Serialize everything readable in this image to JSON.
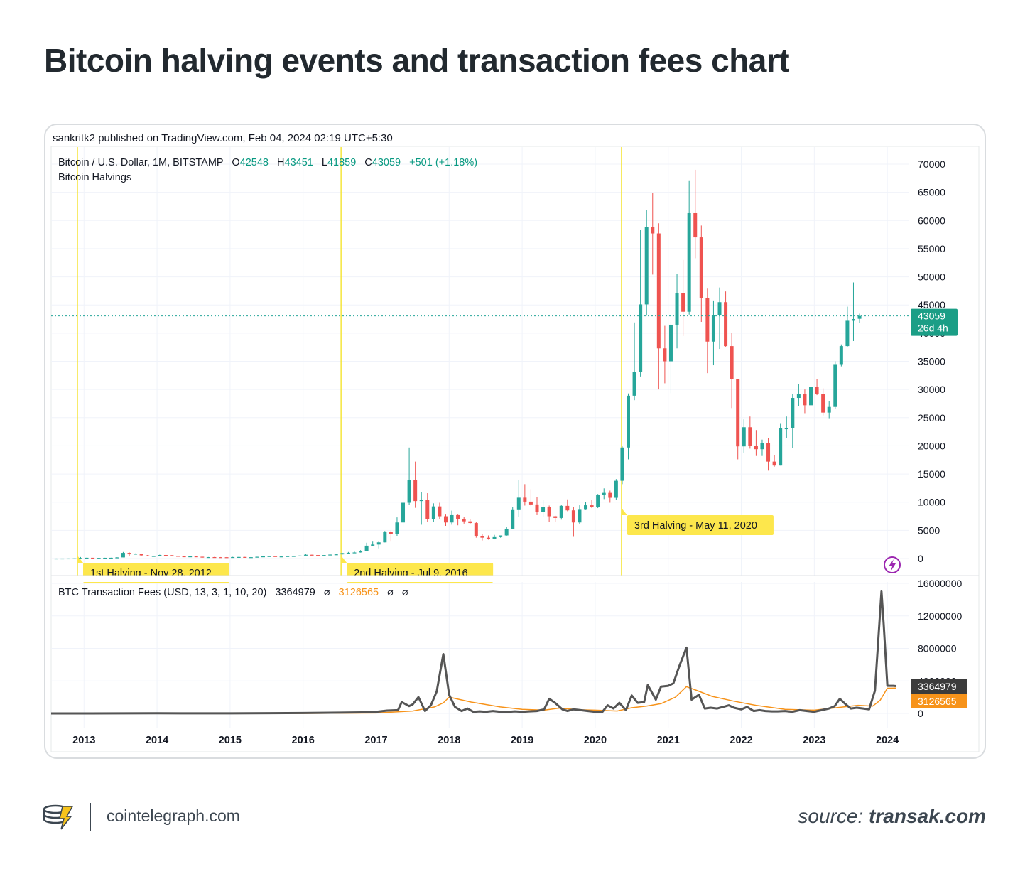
{
  "title": "Bitcoin halving events and transaction fees chart",
  "header": {
    "published": "sankritk2 published on TradingView.com, Feb 04, 2024 02:19 UTC+5:30"
  },
  "legend": {
    "symbol": "Bitcoin / U.S. Dollar, 1M, BITSTAMP",
    "o_label": "O",
    "o_value": "42548",
    "h_label": "H",
    "h_value": "43451",
    "l_label": "L",
    "l_value": "41859",
    "c_label": "C",
    "c_value": "43059",
    "change": "+501 (+1.18%)",
    "indicator": "Bitcoin Halvings"
  },
  "price_badge": {
    "value": "43059",
    "countdown": "26d 4h"
  },
  "fees_legend": {
    "name": "BTC Transaction Fees (USD, 13, 3, 1, 10, 20)",
    "v1": "3364979",
    "v2": "3126565",
    "symbol": "⌀",
    "badge_dark": "3364979",
    "badge_orange": "3126565"
  },
  "footer": {
    "brand": "cointelegraph.com",
    "source_label": "source:",
    "source_site": "transak.com"
  },
  "colors": {
    "up": "#26a69a",
    "down": "#ef5350",
    "fees": "#555555",
    "fees_ma": "#f7931a",
    "halving_line": "#f5e53b",
    "halving_label": "#fde74c"
  },
  "chart_data": [
    {
      "type": "candlestick",
      "title": "Bitcoin / U.S. Dollar, 1M, BITSTAMP",
      "y_ticks": [
        0,
        5000,
        10000,
        15000,
        20000,
        25000,
        30000,
        35000,
        40000,
        45000,
        50000,
        55000,
        60000,
        65000,
        70000
      ],
      "ylim": [
        0,
        70000
      ],
      "x_ticks": [
        "2013",
        "2014",
        "2015",
        "2016",
        "2017",
        "2018",
        "2019",
        "2020",
        "2021",
        "2022",
        "2023",
        "2024"
      ],
      "xlim": [
        2012.55,
        2024.3
      ],
      "halvings": [
        {
          "date": 2012.91,
          "label": "1st Halving - Nov 28, 2012"
        },
        {
          "date": 2016.52,
          "label": "2nd Halving - Jul 9, 2016"
        },
        {
          "date": 2020.36,
          "label": "3rd Halving - May 11, 2020"
        }
      ],
      "candles_ohlc": [
        [
          8,
          8,
          13,
          3
        ],
        [
          13,
          13,
          13,
          13
        ],
        [
          13,
          20,
          22,
          13
        ],
        [
          20,
          33,
          35,
          19
        ],
        [
          33,
          93,
          266,
          33
        ],
        [
          93,
          140,
          150,
          80
        ],
        [
          140,
          95,
          110,
          60
        ],
        [
          95,
          110,
          130,
          80
        ],
        [
          110,
          130,
          140,
          100
        ],
        [
          130,
          135,
          150,
          120
        ],
        [
          135,
          200,
          230,
          120
        ],
        [
          200,
          1000,
          1160,
          200
        ],
        [
          1000,
          750,
          1100,
          500
        ],
        [
          750,
          850,
          900,
          700
        ],
        [
          850,
          560,
          720,
          530
        ],
        [
          560,
          440,
          630,
          380
        ],
        [
          440,
          450,
          470,
          380
        ],
        [
          450,
          630,
          680,
          440
        ],
        [
          630,
          580,
          660,
          550
        ],
        [
          580,
          470,
          620,
          450
        ],
        [
          470,
          390,
          480,
          380
        ],
        [
          390,
          330,
          420,
          320
        ],
        [
          330,
          380,
          460,
          320
        ],
        [
          380,
          320,
          400,
          300
        ],
        [
          320,
          210,
          330,
          150
        ],
        [
          210,
          255,
          270,
          210
        ],
        [
          255,
          240,
          300,
          200
        ],
        [
          240,
          235,
          260,
          220
        ],
        [
          235,
          230,
          260,
          220
        ],
        [
          230,
          260,
          300,
          230
        ],
        [
          260,
          280,
          300,
          260
        ],
        [
          280,
          230,
          290,
          200
        ],
        [
          230,
          240,
          270,
          200
        ],
        [
          240,
          310,
          330,
          230
        ],
        [
          310,
          380,
          500,
          300
        ],
        [
          380,
          430,
          450,
          350
        ],
        [
          430,
          370,
          440,
          360
        ],
        [
          370,
          370,
          390,
          350
        ],
        [
          370,
          430,
          440,
          400
        ],
        [
          430,
          450,
          470,
          410
        ],
        [
          450,
          530,
          530,
          440
        ],
        [
          530,
          670,
          780,
          530
        ],
        [
          670,
          620,
          690,
          590
        ],
        [
          620,
          570,
          620,
          480
        ],
        [
          570,
          610,
          620,
          560
        ],
        [
          610,
          700,
          730,
          590
        ],
        [
          700,
          740,
          760,
          680
        ],
        [
          740,
          960,
          1000,
          700
        ],
        [
          960,
          1020,
          1160,
          930
        ],
        [
          1020,
          1080,
          1220,
          960
        ],
        [
          1080,
          1350,
          1480,
          1050
        ],
        [
          1350,
          2280,
          2800,
          1340
        ],
        [
          2280,
          2480,
          3000,
          2150
        ],
        [
          2480,
          2870,
          3040,
          1800
        ],
        [
          2870,
          4700,
          4900,
          2850
        ],
        [
          4700,
          4350,
          4980,
          3000
        ],
        [
          4350,
          6400,
          7300,
          4000
        ],
        [
          6400,
          9900,
          11300,
          5500
        ],
        [
          9900,
          14000,
          19700,
          9500
        ],
        [
          14000,
          10200,
          17200,
          9000
        ],
        [
          10200,
          10400,
          11800,
          6000
        ],
        [
          10400,
          7000,
          11600,
          6500
        ],
        [
          7000,
          9250,
          9800,
          6500
        ],
        [
          9250,
          7500,
          9900,
          7000
        ],
        [
          7500,
          6400,
          7800,
          5800
        ],
        [
          6400,
          7700,
          8500,
          6000
        ],
        [
          7700,
          7000,
          7800,
          5900
        ],
        [
          7000,
          6600,
          7400,
          6200
        ],
        [
          6600,
          6300,
          7000,
          6100
        ],
        [
          6300,
          4000,
          6500,
          3700
        ],
        [
          4000,
          3700,
          4300,
          3200
        ],
        [
          3700,
          3450,
          4100,
          3350
        ],
        [
          3450,
          3800,
          4200,
          3400
        ],
        [
          3800,
          4100,
          4100,
          3700
        ],
        [
          4100,
          5300,
          5600,
          4050
        ],
        [
          5300,
          8600,
          9100,
          5200
        ],
        [
          8600,
          10800,
          13900,
          7400
        ],
        [
          10800,
          10100,
          13200,
          9400
        ],
        [
          10100,
          9600,
          12300,
          9300
        ],
        [
          9600,
          8300,
          10900,
          7700
        ],
        [
          8300,
          9200,
          10400,
          7300
        ],
        [
          9200,
          7500,
          9400,
          6500
        ],
        [
          7500,
          7200,
          7600,
          6500
        ],
        [
          7200,
          9350,
          9550,
          6900
        ],
        [
          9350,
          8550,
          10500,
          8400
        ],
        [
          8550,
          6400,
          9200,
          3850
        ],
        [
          6400,
          8650,
          9450,
          6150
        ],
        [
          8650,
          9450,
          10050,
          8600
        ],
        [
          9450,
          9150,
          10400,
          8950
        ],
        [
          9150,
          11350,
          11450,
          8950
        ],
        [
          11350,
          11650,
          12450,
          10550
        ],
        [
          11650,
          10780,
          12050,
          9900
        ],
        [
          10780,
          13800,
          14100,
          10400
        ],
        [
          13800,
          19700,
          19900,
          13200
        ],
        [
          19700,
          28900,
          29300,
          17600
        ],
        [
          28900,
          33100,
          41900,
          28100
        ],
        [
          33100,
          45100,
          58300,
          32300
        ],
        [
          45100,
          58800,
          61800,
          43100
        ],
        [
          58800,
          57700,
          64900,
          50400
        ],
        [
          57700,
          37300,
          59500,
          30000
        ],
        [
          37300,
          35000,
          41300,
          31100
        ],
        [
          35000,
          41500,
          42000,
          29300
        ],
        [
          41500,
          47100,
          50500,
          37300
        ],
        [
          47100,
          43800,
          53000,
          39500
        ],
        [
          43800,
          61300,
          67000,
          43300
        ],
        [
          61300,
          57000,
          69000,
          53300
        ],
        [
          57000,
          46200,
          59100,
          42000
        ],
        [
          46200,
          38500,
          47900,
          32900
        ],
        [
          38500,
          43200,
          45800,
          34300
        ],
        [
          43200,
          45500,
          48100,
          37200
        ],
        [
          45500,
          37700,
          47400,
          37600
        ],
        [
          37700,
          31800,
          40000,
          26700
        ],
        [
          31800,
          19900,
          31900,
          17600
        ],
        [
          19900,
          23300,
          24700,
          18800
        ],
        [
          23300,
          20000,
          25200,
          19500
        ],
        [
          20000,
          19400,
          22800,
          18200
        ],
        [
          19400,
          20500,
          21100,
          18200
        ],
        [
          20500,
          17200,
          21400,
          15600
        ],
        [
          17200,
          16500,
          18400,
          16300
        ],
        [
          16500,
          23100,
          23900,
          16500
        ],
        [
          23100,
          23100,
          25200,
          21400
        ],
        [
          23100,
          28500,
          29200,
          19600
        ],
        [
          28500,
          29200,
          31000,
          27000
        ],
        [
          29200,
          27200,
          30000,
          25800
        ],
        [
          27200,
          30500,
          31400,
          24800
        ],
        [
          30500,
          29200,
          31800,
          29000
        ],
        [
          29200,
          25900,
          30200,
          25400
        ],
        [
          25900,
          26900,
          28000,
          24900
        ],
        [
          26900,
          34500,
          35000,
          26600
        ],
        [
          34500,
          37700,
          38000,
          34100
        ],
        [
          37700,
          42200,
          44700,
          37600
        ],
        [
          42200,
          42500,
          49000,
          38600
        ],
        [
          42548,
          43059,
          43451,
          41859
        ]
      ],
      "candles_start": 2012.62,
      "candles_step": 0.08333,
      "last_price": 43059
    },
    {
      "type": "line",
      "title": "BTC Transaction Fees (USD, 13, 3, 1, 10, 20)",
      "y_ticks": [
        0,
        4000000,
        8000000,
        12000000,
        16000000
      ],
      "ylim": [
        0,
        16000000
      ],
      "series": [
        {
          "name": "BTC Transaction Fees",
          "x": [
            2012.55,
            2013.0,
            2014.0,
            2015.0,
            2016.0,
            2016.5,
            2016.9,
            2017.0,
            2017.15,
            2017.3,
            2017.35,
            2017.45,
            2017.5,
            2017.58,
            2017.67,
            2017.75,
            2017.83,
            2017.92,
            2018.0,
            2018.08,
            2018.17,
            2018.25,
            2018.33,
            2018.42,
            2018.5,
            2018.6,
            2018.75,
            2018.9,
            2019.0,
            2019.1,
            2019.2,
            2019.3,
            2019.37,
            2019.45,
            2019.55,
            2019.62,
            2019.7,
            2019.8,
            2019.9,
            2020.0,
            2020.1,
            2020.17,
            2020.25,
            2020.33,
            2020.42,
            2020.5,
            2020.58,
            2020.67,
            2020.72,
            2020.83,
            2020.9,
            2021.0,
            2021.07,
            2021.15,
            2021.25,
            2021.32,
            2021.42,
            2021.5,
            2021.58,
            2021.67,
            2021.75,
            2021.83,
            2021.9,
            2022.0,
            2022.08,
            2022.17,
            2022.25,
            2022.33,
            2022.42,
            2022.5,
            2022.6,
            2022.7,
            2022.8,
            2022.9,
            2023.0,
            2023.1,
            2023.2,
            2023.28,
            2023.35,
            2023.42,
            2023.5,
            2023.58,
            2023.67,
            2023.75,
            2023.83,
            2023.92,
            2023.95,
            2024.0,
            2024.08,
            2024.12
          ],
          "values": [
            0,
            0,
            20000,
            10000,
            50000,
            100000,
            150000,
            200000,
            350000,
            400000,
            1400000,
            900000,
            1100000,
            2000000,
            300000,
            1000000,
            2700000,
            7300000,
            2300000,
            800000,
            300000,
            600000,
            200000,
            250000,
            200000,
            300000,
            150000,
            250000,
            200000,
            250000,
            300000,
            500000,
            1800000,
            1300000,
            500000,
            300000,
            500000,
            400000,
            300000,
            200000,
            200000,
            1000000,
            600000,
            1300000,
            400000,
            2200000,
            1300000,
            1400000,
            3500000,
            1700000,
            3300000,
            3400000,
            3700000,
            5800000,
            8100000,
            1700000,
            2300000,
            600000,
            700000,
            600000,
            800000,
            1000000,
            700000,
            500000,
            800000,
            300000,
            400000,
            300000,
            250000,
            250000,
            300000,
            200000,
            400000,
            300000,
            200000,
            400000,
            600000,
            900000,
            1800000,
            1200000,
            600000,
            700000,
            600000,
            500000,
            2800000,
            15000000,
            11000000,
            3400000,
            3400000,
            3364979
          ]
        },
        {
          "name": "Moving average",
          "x": [
            2012.55,
            2014.0,
            2016.0,
            2017.0,
            2017.5,
            2017.8,
            2017.92,
            2018.0,
            2018.3,
            2018.7,
            2019.0,
            2019.3,
            2019.5,
            2019.8,
            2020.0,
            2020.3,
            2020.5,
            2020.7,
            2020.9,
            2021.1,
            2021.25,
            2021.4,
            2021.6,
            2021.9,
            2022.2,
            2022.6,
            2023.0,
            2023.3,
            2023.6,
            2023.8,
            2023.9,
            2024.0,
            2024.12
          ],
          "values": [
            0,
            0,
            0,
            50000,
            300000,
            800000,
            1300000,
            2000000,
            1400000,
            800000,
            500000,
            400000,
            650000,
            450000,
            400000,
            300000,
            700000,
            900000,
            1200000,
            2000000,
            3300000,
            2800000,
            2100000,
            1500000,
            1000000,
            500000,
            400000,
            700000,
            1000000,
            900000,
            1600000,
            3100000,
            3126565
          ]
        }
      ],
      "xlim": [
        2012.55,
        2024.3
      ]
    }
  ]
}
